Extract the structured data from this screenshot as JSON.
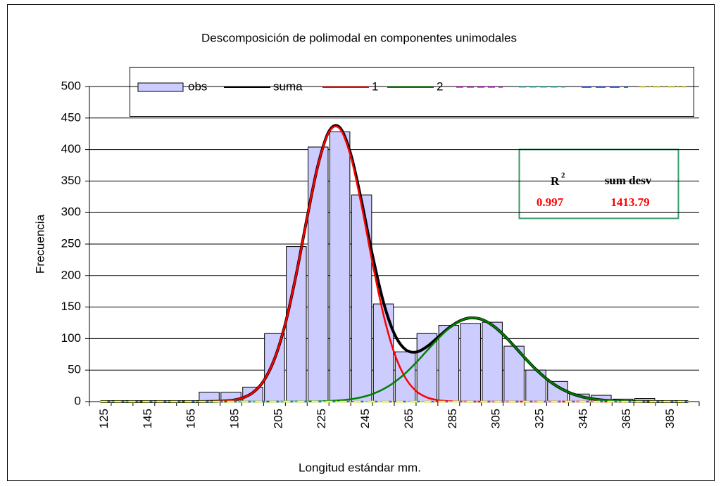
{
  "chart_data": {
    "type": "bar",
    "title": "Descomposición de polimodal en componentes unimodales",
    "xlabel": "Longitud estándar mm.",
    "ylabel": "Frecuencia",
    "categories": [
      125,
      null,
      145,
      null,
      165,
      null,
      185,
      null,
      205,
      null,
      225,
      null,
      245,
      null,
      265,
      null,
      285,
      null,
      305,
      null,
      325,
      null,
      345,
      null,
      365,
      null,
      385,
      null
    ],
    "bars": {
      "name": "obs",
      "color": "#ccccff",
      "values": [
        0,
        0,
        0,
        0,
        0,
        15,
        15,
        23,
        108,
        246,
        404,
        428,
        328,
        155,
        79,
        108,
        121,
        124,
        126,
        88,
        50,
        32,
        12,
        10,
        4,
        5,
        1,
        0
      ]
    },
    "xlim": [
      120,
      400
    ],
    "x": [
      125,
      130,
      135,
      140,
      145,
      150,
      155,
      160,
      165,
      170,
      175,
      180,
      185,
      190,
      195,
      200,
      205,
      210,
      215,
      220,
      225,
      230,
      235,
      240,
      245,
      250,
      255,
      260,
      265,
      270,
      275,
      280,
      285,
      290,
      295,
      300,
      305,
      310,
      315,
      320,
      325,
      330,
      335,
      340,
      345,
      350,
      355,
      360,
      365,
      370,
      375,
      380,
      385,
      390,
      395
    ],
    "series": [
      {
        "name": "suma",
        "color": "#000000",
        "width": 4,
        "values": [
          0,
          0,
          0,
          0,
          0,
          0,
          0,
          0,
          0,
          0,
          0.2,
          0.6,
          1.8,
          5.4,
          14.1,
          32.8,
          67.8,
          124.2,
          202.4,
          292.6,
          375.8,
          428.8,
          434.9,
          392.8,
          317.4,
          231.9,
          158,
          107.8,
          83,
          78.6,
          87.3,
          101.8,
          116.7,
          127.9,
          132.9,
          130.6,
          121.3,
          106.5,
          88.3,
          69.2,
          51.2,
          35.9,
          23.7,
          14.8,
          8.7,
          4.9,
          2.6,
          1.3,
          0.6,
          0.3,
          0.1,
          0,
          0,
          0,
          0
        ]
      },
      {
        "name": "1",
        "color": "#ff0000",
        "width": 2.5,
        "values": [
          0,
          0,
          0,
          0,
          0,
          0,
          0,
          0,
          0,
          0,
          0.2,
          0.6,
          1.8,
          5.4,
          14.1,
          32.8,
          67.8,
          124.2,
          202.3,
          292.4,
          375.4,
          427.8,
          432.9,
          389,
          310.4,
          219.8,
          138.2,
          77.2,
          38.3,
          16.8,
          6.6,
          2.3,
          0.7,
          0.2,
          0,
          0,
          0,
          0,
          0,
          0,
          0,
          0,
          0,
          0,
          0,
          0,
          0,
          0,
          0,
          0,
          0,
          0,
          0,
          0,
          0
        ]
      },
      {
        "name": "2",
        "color": "#008000",
        "width": 2.5,
        "values": [
          0,
          0,
          0,
          0,
          0,
          0,
          0,
          0,
          0,
          0,
          0,
          0,
          0,
          0,
          0,
          0,
          0,
          0,
          0.1,
          0.2,
          0.4,
          1,
          2,
          3.8,
          7,
          12.1,
          19.8,
          30.6,
          44.7,
          61.8,
          80.7,
          99.5,
          116,
          127.7,
          132.9,
          130.6,
          121.3,
          106.5,
          88.3,
          69.2,
          51.2,
          35.9,
          23.7,
          14.8,
          8.7,
          4.9,
          2.6,
          1.3,
          0.6,
          0.3,
          0.1,
          0,
          0,
          0,
          0
        ]
      },
      {
        "color": "#ff00ff",
        "width": 1.5,
        "dash": "10,5",
        "values": [
          0,
          0,
          0,
          0,
          0,
          0,
          0,
          0,
          0,
          0,
          0,
          0,
          0,
          0,
          0,
          0,
          0,
          0,
          0,
          0,
          0,
          0,
          0,
          0,
          0,
          0,
          0,
          0,
          0,
          0,
          0,
          0,
          0,
          0,
          0,
          0,
          0,
          0,
          0,
          0,
          0,
          0,
          0,
          0,
          0,
          0,
          0,
          0,
          0,
          0,
          0,
          0,
          0,
          0,
          0
        ]
      },
      {
        "color": "#00ffff",
        "width": 1.5,
        "dash": "10,5",
        "values": [
          0,
          0,
          0,
          0,
          0,
          0,
          0,
          0,
          0,
          0,
          0,
          0,
          0,
          0,
          0,
          0,
          0,
          0,
          0,
          0,
          0,
          0,
          0,
          0,
          0,
          0,
          0,
          0,
          0,
          0,
          0,
          0,
          0,
          0,
          0,
          0,
          0,
          0,
          0,
          0,
          0,
          0,
          0,
          0,
          0,
          0,
          0,
          0,
          0,
          0,
          0,
          0,
          0,
          0,
          0
        ]
      },
      {
        "color": "#3366ff",
        "width": 2.5,
        "dash": "14,6",
        "values": [
          0,
          0,
          0,
          0,
          0,
          0,
          0,
          0,
          0,
          0,
          0,
          0,
          0,
          0,
          0,
          0,
          0,
          0,
          0,
          0,
          0,
          0,
          0,
          0,
          0,
          0,
          0,
          0,
          0,
          0,
          0,
          0,
          0,
          0,
          0,
          0,
          0,
          0,
          0,
          0,
          0,
          0,
          0,
          0,
          0,
          0,
          0,
          0,
          0,
          0,
          0,
          0,
          0,
          0,
          0
        ]
      },
      {
        "color": "#ffff00",
        "width": 2.5,
        "dash": "10,4,2,4",
        "values": [
          0,
          0,
          0,
          0,
          0,
          0,
          0,
          0,
          0,
          0,
          0,
          0,
          0,
          0,
          0,
          0,
          0,
          0,
          0,
          0,
          0,
          0,
          0,
          0,
          0,
          0,
          0,
          0,
          0,
          0,
          0,
          0,
          0,
          0,
          0,
          0,
          0,
          0,
          0,
          0,
          0,
          0,
          0,
          0,
          0,
          0,
          0,
          0,
          0,
          0,
          0,
          0,
          0,
          0,
          0
        ]
      }
    ],
    "ylim": [
      0,
      500
    ],
    "yticks": [
      0,
      50,
      100,
      150,
      200,
      250,
      300,
      350,
      400,
      450,
      500
    ],
    "grid": true,
    "fit_box": {
      "r2_label": "R",
      "r2_exp": "2",
      "sum_label": "sum desv",
      "r2": 0.997,
      "sum_desv": 1413.79
    }
  }
}
